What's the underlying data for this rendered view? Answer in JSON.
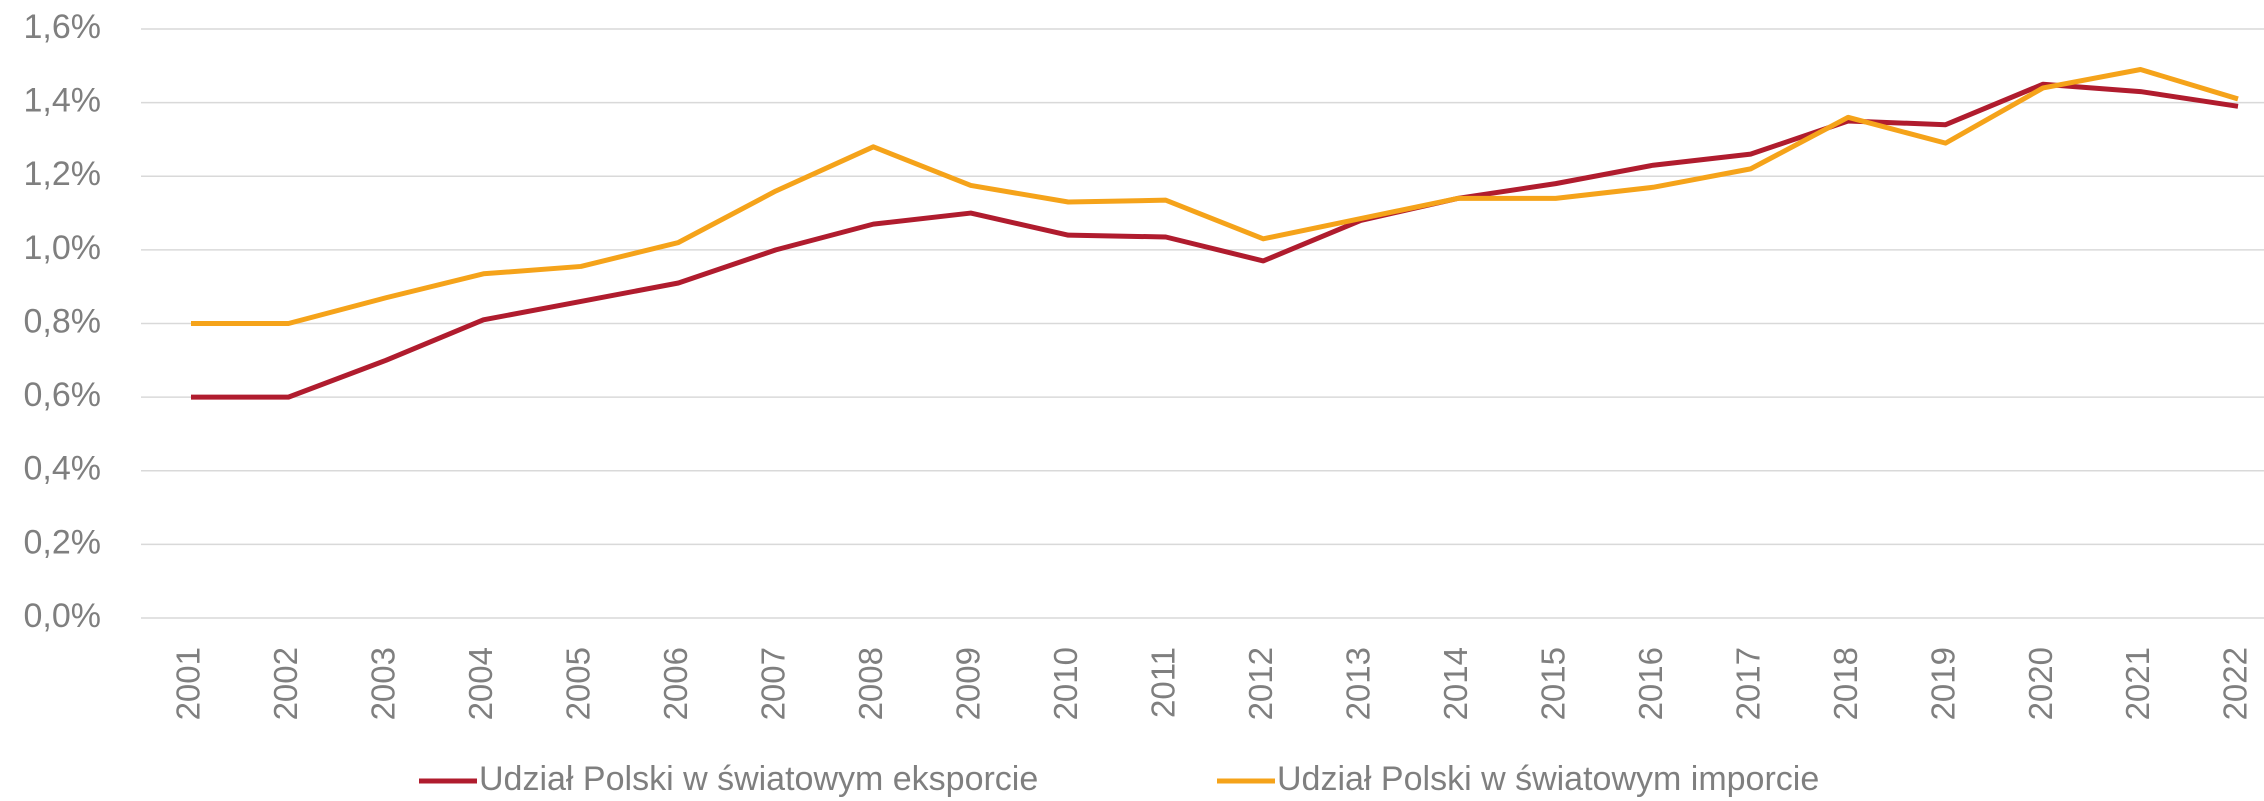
{
  "chart_data": {
    "type": "line",
    "categories": [
      "2001",
      "2002",
      "2003",
      "2004",
      "2005",
      "2006",
      "2007",
      "2008",
      "2009",
      "2010",
      "2011",
      "2012",
      "2013",
      "2014",
      "2015",
      "2016",
      "2017",
      "2018",
      "2019",
      "2020",
      "2021",
      "2022"
    ],
    "series": [
      {
        "name": "Udział Polski w światowym eksporcie",
        "color": "#b01c2e",
        "values": [
          0.6,
          0.6,
          0.7,
          0.81,
          0.86,
          0.91,
          1.0,
          1.07,
          1.1,
          1.04,
          1.035,
          0.97,
          1.08,
          1.14,
          1.18,
          1.23,
          1.26,
          1.35,
          1.34,
          1.45,
          1.43,
          1.39
        ]
      },
      {
        "name": "Udział Polski w światowym imporcie",
        "color": "#f5a31a",
        "values": [
          0.8,
          0.8,
          0.87,
          0.935,
          0.955,
          1.02,
          1.16,
          1.28,
          1.175,
          1.13,
          1.135,
          1.03,
          1.085,
          1.14,
          1.14,
          1.17,
          1.22,
          1.36,
          1.29,
          1.44,
          1.49,
          1.41
        ]
      }
    ],
    "ylim": [
      0,
      1.6
    ],
    "yticks": [
      {
        "value": 0,
        "label": "0,0%"
      },
      {
        "value": 0.2,
        "label": "0,2%"
      },
      {
        "value": 0.4,
        "label": "0,4%"
      },
      {
        "value": 0.6,
        "label": "0,6%"
      },
      {
        "value": 0.8,
        "label": "0,8%"
      },
      {
        "value": 1.0,
        "label": "1,0%"
      },
      {
        "value": 1.2,
        "label": "1,2%"
      },
      {
        "value": 1.4,
        "label": "1,4%"
      },
      {
        "value": 1.6,
        "label": "1,6%"
      }
    ],
    "grid": true,
    "legend": "bottom"
  }
}
